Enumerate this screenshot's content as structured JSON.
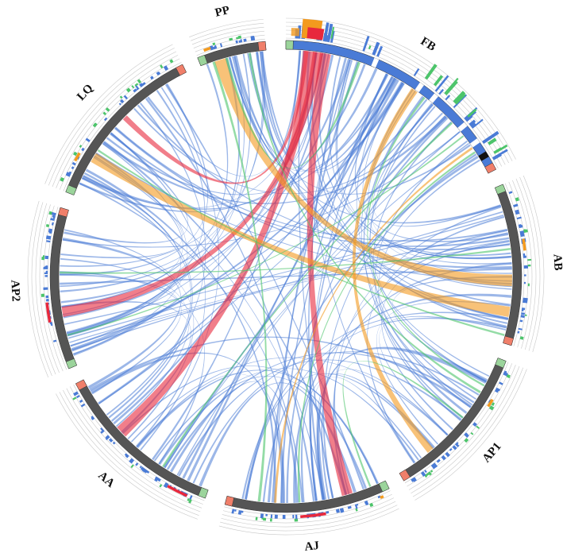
{
  "figure": {
    "center": "genome circos plot"
  },
  "colors": {
    "segment": "#555555",
    "blue": "#4a7bd6",
    "green": "#4cc46a",
    "orange": "#f39a1e",
    "red": "#e8283c",
    "end_green": "#9bd49b",
    "end_salmon": "#f07f6a",
    "ring": "#c8c8c8"
  },
  "segments": [
    {
      "id": "FB",
      "label": "FB",
      "start": 0,
      "end": 63,
      "len": 100
    },
    {
      "id": "AB",
      "label": "AB",
      "start": 67,
      "end": 107,
      "len": 40
    },
    {
      "id": "AP1",
      "label": "AP1",
      "start": 111,
      "end": 150,
      "len": 40
    },
    {
      "id": "AJ",
      "label": "AJ",
      "start": 154,
      "end": 195,
      "len": 42
    },
    {
      "id": "AA",
      "label": "AA",
      "start": 200,
      "end": 243,
      "len": 42
    },
    {
      "id": "AP2",
      "label": "AP2",
      "start": 247,
      "end": 287,
      "len": 40
    },
    {
      "id": "LQ",
      "label": "LQ",
      "start": 291,
      "end": 334,
      "len": 42
    },
    {
      "id": "PP",
      "label": "PP",
      "start": 338,
      "end": 355,
      "len": 40
    }
  ],
  "links": [
    {
      "from": "FB",
      "fp": 0.1,
      "to": "AA",
      "tp": 0.62,
      "width": 3.2,
      "color": "red"
    },
    {
      "from": "FB",
      "fp": 0.13,
      "to": "AP2",
      "tp": 0.35,
      "width": 2.6,
      "color": "red"
    },
    {
      "from": "FB",
      "fp": 0.16,
      "to": "AJ",
      "tp": 0.25,
      "width": 2.8,
      "color": "red"
    },
    {
      "from": "FB",
      "fp": 0.08,
      "to": "LQ",
      "tp": 0.55,
      "width": 1.4,
      "color": "red"
    },
    {
      "from": "PP",
      "fp": 0.3,
      "to": "AB",
      "tp": 0.6,
      "width": 3.0,
      "color": "orange"
    },
    {
      "from": "LQ",
      "fp": 0.25,
      "to": "AB",
      "tp": 0.8,
      "width": 2.6,
      "color": "orange"
    },
    {
      "from": "FB",
      "fp": 0.55,
      "to": "AP1",
      "tp": 0.75,
      "width": 1.8,
      "color": "orange"
    },
    {
      "from": "FB",
      "fp": 0.88,
      "to": "AJ",
      "tp": 0.7,
      "width": 0.6,
      "color": "orange"
    },
    {
      "from": "FB",
      "fp": 0.75,
      "to": "AA",
      "tp": 0.3,
      "width": 0.5,
      "color": "green"
    },
    {
      "from": "FB",
      "fp": 0.82,
      "to": "AP2",
      "tp": 0.2,
      "width": 0.4,
      "color": "green"
    },
    {
      "from": "FB",
      "fp": 0.9,
      "to": "AJ",
      "tp": 0.55,
      "width": 0.5,
      "color": "green"
    },
    {
      "from": "PP",
      "fp": 0.75,
      "to": "AP1",
      "tp": 0.25,
      "width": 0.6,
      "color": "green"
    },
    {
      "from": "LQ",
      "fp": 0.3,
      "to": "AB",
      "tp": 0.95,
      "width": 0.5,
      "color": "green"
    },
    {
      "from": "PP",
      "fp": 0.2,
      "to": "AJ",
      "tp": 0.8,
      "width": 0.7,
      "color": "green"
    },
    {
      "from": "AB",
      "fp": 0.4,
      "to": "AP2",
      "tp": 0.6,
      "width": 0.5,
      "color": "green"
    },
    {
      "from": "FB",
      "fp": 0.3,
      "to": "PP",
      "tp": 0.4,
      "width": 0.7,
      "color": "green"
    },
    {
      "from": "FB",
      "fp": 0.6,
      "to": "AP1",
      "tp": 0.2,
      "width": 0.5,
      "color": "green"
    },
    {
      "from": "AP1",
      "fp": 0.45,
      "to": "AJ",
      "tp": 0.1,
      "width": 0.5,
      "color": "green"
    }
  ],
  "blue_links": [
    {
      "from": "FB",
      "to": "AB",
      "n": 10,
      "w": 0.4
    },
    {
      "from": "FB",
      "to": "AP1",
      "n": 9,
      "w": 0.5
    },
    {
      "from": "FB",
      "to": "AJ",
      "n": 10,
      "w": 0.5
    },
    {
      "from": "FB",
      "to": "AA",
      "n": 9,
      "w": 0.5
    },
    {
      "from": "FB",
      "to": "AP2",
      "n": 8,
      "w": 0.5
    },
    {
      "from": "FB",
      "to": "LQ",
      "n": 7,
      "w": 0.5
    },
    {
      "from": "FB",
      "to": "PP",
      "n": 5,
      "w": 0.5
    },
    {
      "from": "PP",
      "to": "AB",
      "n": 6,
      "w": 0.4
    },
    {
      "from": "PP",
      "to": "AP2",
      "n": 6,
      "w": 0.5
    },
    {
      "from": "LQ",
      "to": "AP2",
      "n": 7,
      "w": 0.5
    },
    {
      "from": "LQ",
      "to": "AJ",
      "n": 6,
      "w": 0.5
    },
    {
      "from": "AB",
      "to": "AJ",
      "n": 6,
      "w": 0.5
    },
    {
      "from": "AB",
      "to": "AP1",
      "n": 5,
      "w": 0.4
    },
    {
      "from": "AP1",
      "to": "AJ",
      "n": 6,
      "w": 0.5
    },
    {
      "from": "AP1",
      "to": "AA",
      "n": 6,
      "w": 0.5
    },
    {
      "from": "AJ",
      "to": "AA",
      "n": 7,
      "w": 0.6
    },
    {
      "from": "AA",
      "to": "AP2",
      "n": 6,
      "w": 0.6
    },
    {
      "from": "AP2",
      "to": "AB",
      "n": 6,
      "w": 0.4
    },
    {
      "from": "LQ",
      "to": "AB",
      "n": 5,
      "w": 0.4
    },
    {
      "from": "AA",
      "to": "LQ",
      "n": 5,
      "w": 0.5
    }
  ]
}
